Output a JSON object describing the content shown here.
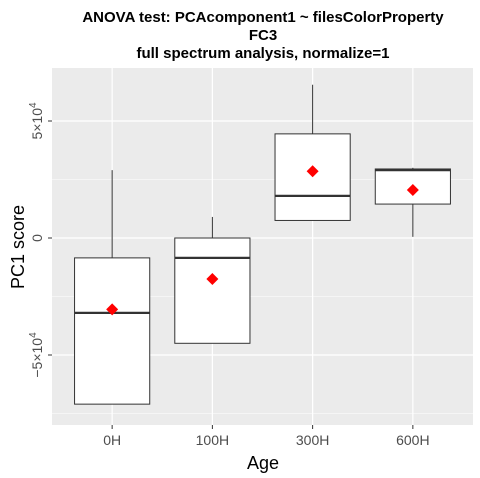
{
  "chart_data": {
    "type": "boxplot",
    "title_lines": [
      "ANOVA test: PCAcomponent1 ~ filesColorProperty",
      "FC3",
      "full spectrum analysis, normalize=1"
    ],
    "xlabel": "Age",
    "ylabel": "PC1 score",
    "categories": [
      "0H",
      "100H",
      "300H",
      "600H"
    ],
    "y_ticks": [
      {
        "value": -50000,
        "mantissa": "−5",
        "exponent": "4"
      },
      {
        "value": 0,
        "mantissa": "0",
        "exponent": ""
      },
      {
        "value": 50000,
        "mantissa": "5",
        "exponent": "4"
      }
    ],
    "ylim": [
      -80000,
      70000
    ],
    "grid": true,
    "background_color": "#ebebeb",
    "grid_color": "#ffffff",
    "mean_marker_color": "#ff0000",
    "boxes": [
      {
        "category": "0H",
        "whisker_low": -71000,
        "q1": -71000,
        "median": -32000,
        "q3": -8500,
        "whisker_high": 29000,
        "mean": -30500
      },
      {
        "category": "100H",
        "whisker_low": -45000,
        "q1": -45000,
        "median": -8500,
        "q3": 0,
        "whisker_high": 9000,
        "mean": -17500
      },
      {
        "category": "300H",
        "whisker_low": 7500,
        "q1": 7500,
        "median": 18000,
        "q3": 44500,
        "whisker_high": 65500,
        "mean": 28500
      },
      {
        "category": "600H",
        "whisker_low": 500,
        "q1": 14500,
        "median": 29000,
        "q3": 29500,
        "whisker_high": 30000,
        "mean": 20500
      }
    ]
  }
}
